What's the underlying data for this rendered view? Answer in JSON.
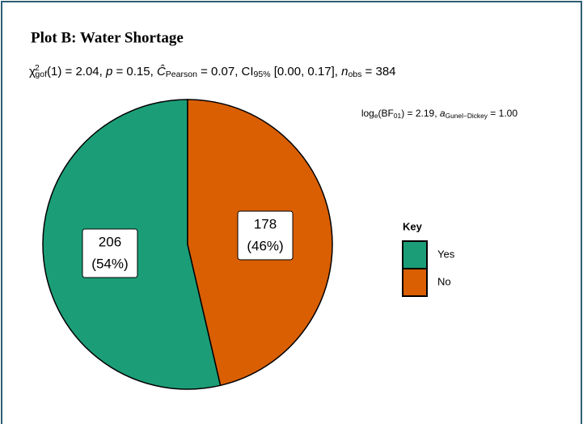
{
  "chart_data": {
    "type": "pie",
    "title": "Plot B: Water Shortage",
    "subtitle": [
      {
        "text": "χ",
        "style": "normal"
      },
      {
        "text": "2",
        "style": "sup"
      },
      {
        "text": "gof",
        "style": "sub"
      },
      {
        "text": "(1) = 2.04, ",
        "style": "normal"
      },
      {
        "text": "p",
        "style": "italic"
      },
      {
        "text": " = 0.15, ",
        "style": "normal"
      },
      {
        "text": "Ĉ",
        "style": "italic"
      },
      {
        "text": "Pearson",
        "style": "sub"
      },
      {
        "text": " = 0.07, CI",
        "style": "normal"
      },
      {
        "text": "95%",
        "style": "sub"
      },
      {
        "text": " [0.00, 0.17], ",
        "style": "normal"
      },
      {
        "text": "n",
        "style": "italic"
      },
      {
        "text": "obs",
        "style": "sub"
      },
      {
        "text": " = 384",
        "style": "normal"
      }
    ],
    "caption": [
      {
        "text": "log",
        "style": "normal"
      },
      {
        "text": "e",
        "style": "sub"
      },
      {
        "text": "(BF",
        "style": "normal"
      },
      {
        "text": "01",
        "style": "sub"
      },
      {
        "text": ") = 2.19, ",
        "style": "normal"
      },
      {
        "text": "a",
        "style": "italic"
      },
      {
        "text": "Gunel−Dickey",
        "style": "sub"
      },
      {
        "text": " = 1.00",
        "style": "normal"
      }
    ],
    "legend_title": "Key",
    "categories": [
      "Yes",
      "No"
    ],
    "values": [
      206,
      178
    ],
    "percentages": [
      54,
      46
    ],
    "percentage_labels": [
      "(54%)",
      "(46%)"
    ],
    "colors": [
      "#1b9e77",
      "#d95f02"
    ]
  }
}
